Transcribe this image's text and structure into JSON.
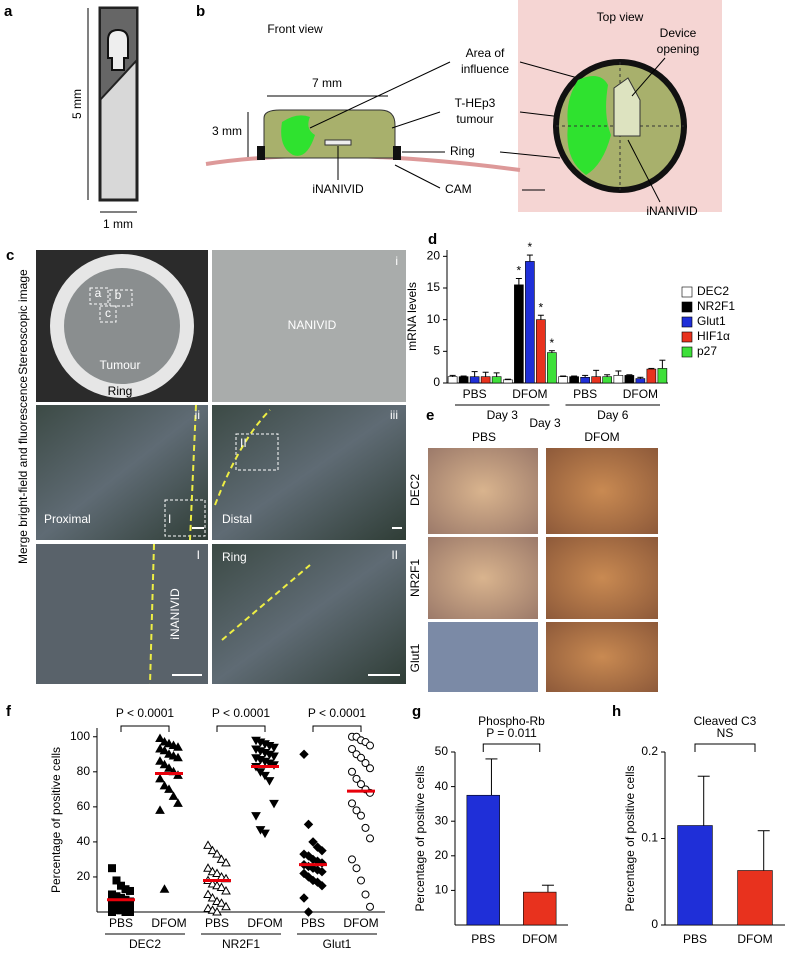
{
  "panel_a": {
    "letter": "a",
    "height_label": "5 mm",
    "width_label": "1 mm"
  },
  "panel_b": {
    "letter": "b",
    "front_view": "Front view",
    "top_view": "Top view",
    "width_label": "7 mm",
    "height_label": "3 mm",
    "area_of_influence": [
      "Area of",
      "influence"
    ],
    "tumour": [
      "T-HEp3",
      "tumour"
    ],
    "ring": "Ring",
    "cam": "CAM",
    "inanivid_front": "iNANIVID",
    "device_opening": [
      "Device",
      "opening"
    ],
    "inanivid_top": "iNANIVID"
  },
  "panel_c": {
    "letter": "c",
    "row_labels": [
      "Stereoscopic image",
      "Merge bright-field and fluorescence"
    ],
    "tumour": "Tumour",
    "ring_top": "Ring",
    "nanivid": "NANIVID",
    "proximal": "Proximal",
    "distal": "Distal",
    "inanivid": "iNANIVID",
    "ring_bottom": "Ring",
    "boxes": [
      "a",
      "b",
      "c"
    ],
    "numerals": [
      "i",
      "ii",
      "iii",
      "I",
      "II"
    ],
    "inset_boxes": [
      "I",
      "II"
    ]
  },
  "panel_e": {
    "letter": "e",
    "title": "Day 3",
    "columns": [
      "PBS",
      "DFOM"
    ],
    "rows": [
      "DEC2",
      "NR2F1",
      "Glut1"
    ]
  },
  "chart_data": [
    {
      "letter": "d",
      "type": "bar",
      "y_label": "mRNA levels",
      "categories": [
        "PBS",
        "DFOM",
        "PBS",
        "DFOM"
      ],
      "groups": [
        "Day 3",
        "Day 6"
      ],
      "ylim": [
        0,
        21
      ],
      "yticks": [
        0,
        5,
        10,
        15,
        20
      ],
      "series": [
        {
          "name": "DEC2",
          "color": "#ffffff",
          "values": [
            1.0,
            0.5,
            1.0,
            1.2
          ],
          "errors": [
            0.2,
            0.1,
            0.1,
            0.7
          ],
          "significance": [
            null,
            null,
            null,
            null
          ]
        },
        {
          "name": "NR2F1",
          "color": "#000000",
          "values": [
            1.0,
            15.5,
            1.0,
            1.2
          ],
          "errors": [
            0.1,
            1.0,
            0.1,
            0.1
          ],
          "significance": [
            null,
            "*",
            null,
            null
          ]
        },
        {
          "name": "Glut1",
          "color": "#1f2fd8",
          "values": [
            1.0,
            19.2,
            0.9,
            0.7
          ],
          "errors": [
            0.8,
            1.0,
            0.3,
            0.2
          ],
          "significance": [
            null,
            "*",
            null,
            null
          ]
        },
        {
          "name": "HIF1α",
          "color": "#e8321e",
          "values": [
            1.0,
            10.0,
            1.0,
            2.2
          ],
          "errors": [
            0.7,
            0.7,
            1.0,
            0.1
          ],
          "significance": [
            null,
            "*",
            null,
            null
          ]
        },
        {
          "name": "p27",
          "color": "#3ee03a",
          "values": [
            1.0,
            4.8,
            1.0,
            2.3
          ],
          "errors": [
            0.6,
            0.3,
            0.3,
            1.3
          ],
          "significance": [
            null,
            "*",
            null,
            null
          ]
        }
      ]
    },
    {
      "letter": "f",
      "type": "scatter",
      "y_label": "Percentage of positive cells",
      "categories": [
        "PBS",
        "DFOM",
        "PBS",
        "DFOM",
        "PBS",
        "DFOM"
      ],
      "groups": [
        "DEC2",
        "NR2F1",
        "Glut1"
      ],
      "p_values": [
        "P < 0.0001",
        "P < 0.0001",
        "P < 0.0001"
      ],
      "ylim": [
        0,
        105
      ],
      "yticks": [
        20,
        40,
        60,
        80,
        100
      ],
      "mean_color": "#e8000b",
      "series": [
        {
          "marker": "square",
          "filled": true,
          "values": [
            25,
            18,
            15,
            13,
            12,
            10,
            9,
            8,
            7,
            6,
            5,
            5,
            4,
            3,
            2,
            2,
            1,
            1,
            0,
            0,
            0
          ],
          "mean": 7
        },
        {
          "marker": "triangle",
          "filled": true,
          "values": [
            99,
            97,
            96,
            95,
            94,
            93,
            92,
            90,
            89,
            88,
            86,
            84,
            82,
            80,
            78,
            76,
            72,
            70,
            66,
            62,
            58,
            13
          ],
          "mean": 79
        },
        {
          "marker": "triangle",
          "filled": false,
          "values": [
            38,
            35,
            33,
            30,
            28,
            25,
            23,
            22,
            20,
            19,
            18,
            16,
            15,
            14,
            12,
            10,
            8,
            6,
            5,
            3,
            2,
            1,
            0
          ],
          "mean": 18
        },
        {
          "marker": "inverted-triangle",
          "filled": true,
          "values": [
            98,
            97,
            96,
            95,
            94,
            93,
            92,
            91,
            90,
            89,
            88,
            87,
            86,
            85,
            84,
            83,
            80,
            78,
            75,
            62,
            55,
            47,
            45
          ],
          "mean": 83
        },
        {
          "marker": "diamond",
          "filled": true,
          "values": [
            90,
            50,
            40,
            37,
            35,
            33,
            32,
            30,
            29,
            28,
            27,
            26,
            25,
            24,
            23,
            22,
            20,
            18,
            17,
            15,
            8,
            0
          ],
          "mean": 27
        },
        {
          "marker": "circle",
          "filled": false,
          "values": [
            100,
            100,
            98,
            97,
            95,
            93,
            90,
            88,
            85,
            82,
            80,
            76,
            73,
            70,
            68,
            62,
            58,
            55,
            48,
            42,
            30,
            25,
            18,
            10,
            3
          ],
          "mean": 69
        }
      ]
    },
    {
      "letter": "g",
      "type": "bar",
      "title": "Phospho-Rb",
      "y_label": "Percentage of positive cells",
      "categories": [
        "PBS",
        "DFOM"
      ],
      "values": [
        37.5,
        9.5
      ],
      "errors": [
        10.5,
        2
      ],
      "colors": [
        "#1f2fd8",
        "#e8321e"
      ],
      "ylim": [
        0,
        50
      ],
      "yticks": [
        10,
        20,
        30,
        40,
        50
      ],
      "comparison": "P = 0.011"
    },
    {
      "letter": "h",
      "type": "bar",
      "title": "Cleaved C3",
      "y_label": "Percentage of positive cells",
      "categories": [
        "PBS",
        "DFOM"
      ],
      "values": [
        0.115,
        0.063
      ],
      "errors": [
        0.057,
        0.046
      ],
      "colors": [
        "#1f2fd8",
        "#e8321e"
      ],
      "ylim": [
        0,
        0.2
      ],
      "yticks": [
        0,
        0.1,
        0.2
      ],
      "comparison": "NS"
    }
  ]
}
